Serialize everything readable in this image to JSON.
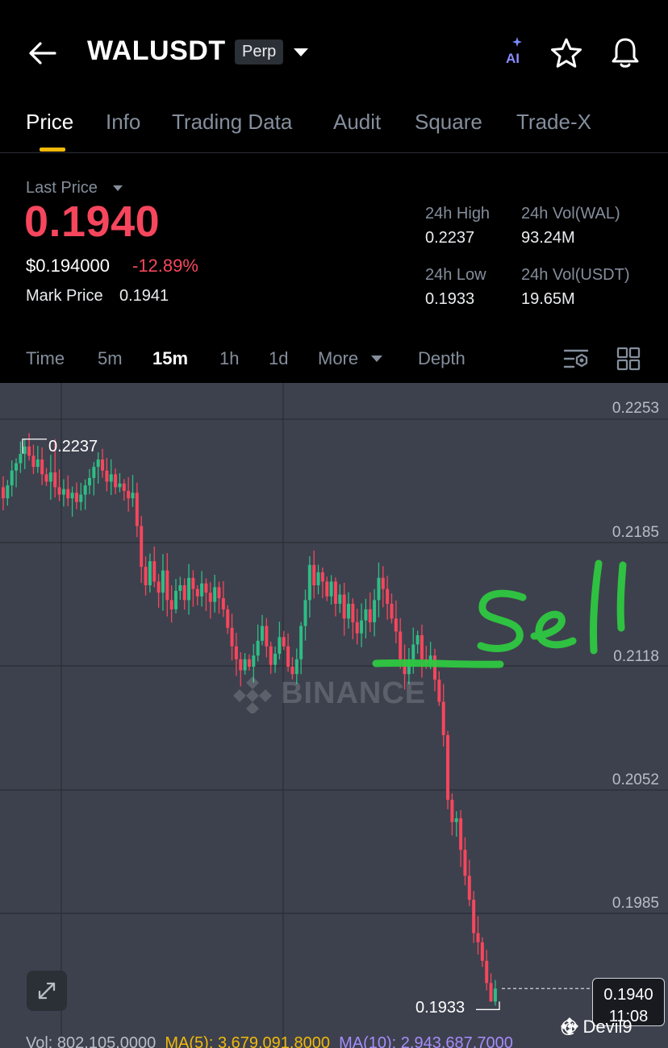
{
  "header": {
    "symbol": "WALUSDT",
    "badge": "Perp",
    "icons": [
      "back-arrow-icon",
      "chevron-down-icon",
      "ai-icon",
      "star-icon",
      "bell-icon"
    ],
    "ai_label": "AI"
  },
  "tabs": [
    {
      "label": "Price",
      "active": true
    },
    {
      "label": "Info"
    },
    {
      "label": "Trading Data"
    },
    {
      "label": "Audit"
    },
    {
      "label": "Square"
    },
    {
      "label": "Trade-X"
    }
  ],
  "price": {
    "last_price_label": "Last Price",
    "last_price": "0.1940",
    "usd_price": "$0.194000",
    "change_pct": "-12.89%",
    "mark_label": "Mark Price",
    "mark_value": "0.1941"
  },
  "stats": {
    "high_label": "24h High",
    "high": "0.2237",
    "vol_base_label": "24h Vol(WAL)",
    "vol_base": "93.24M",
    "low_label": "24h Low",
    "low": "0.1933",
    "vol_quote_label": "24h Vol(USDT)",
    "vol_quote": "19.65M"
  },
  "intervals": {
    "items": [
      "Time",
      "5m",
      "15m",
      "1h",
      "1d",
      "More",
      "Depth"
    ],
    "active": "15m"
  },
  "chart": {
    "watermark": "BINANCE",
    "y_ticks": [
      "0.2253",
      "0.2185",
      "0.2118",
      "0.2052",
      "0.1985"
    ],
    "high_marker": "0.2237",
    "low_marker": "0.1933",
    "current_price": "0.1940",
    "countdown": "11:08",
    "annotation": "Sell",
    "vol_label": "Vol: 802,105.0000",
    "ma5_label": "MA(5): 3,679,091.8000",
    "ma10_label": "MA(10): 2,943,687.7000",
    "credit": "@ Devil9",
    "colors": {
      "up": "#2ebd85",
      "down": "#f6465d",
      "bg": "#3d414d",
      "accent": "#f0b90b",
      "annotation": "#2ecc40"
    }
  },
  "chart_data": {
    "type": "candlestick",
    "interval": "15m",
    "y_ticks": [
      0.2253,
      0.2185,
      0.2118,
      0.2052,
      0.1985
    ],
    "high": 0.2237,
    "low": 0.1933,
    "last": 0.194,
    "close_series": [
      0.2205,
      0.2212,
      0.222,
      0.2224,
      0.2229,
      0.2233,
      0.2228,
      0.2222,
      0.2226,
      0.2218,
      0.2214,
      0.2219,
      0.2211,
      0.2207,
      0.221,
      0.2205,
      0.2208,
      0.2203,
      0.2207,
      0.2212,
      0.2216,
      0.2222,
      0.2226,
      0.222,
      0.2214,
      0.2218,
      0.2211,
      0.2213,
      0.2209,
      0.2205,
      0.2208,
      0.219,
      0.2168,
      0.2158,
      0.2171,
      0.216,
      0.2154,
      0.2166,
      0.215,
      0.2145,
      0.2155,
      0.2158,
      0.215,
      0.2162,
      0.2156,
      0.2152,
      0.2159,
      0.2154,
      0.2149,
      0.2157,
      0.2151,
      0.2145,
      0.2135,
      0.2125,
      0.2118,
      0.2112,
      0.2118,
      0.2114,
      0.212,
      0.2128,
      0.2136,
      0.2125,
      0.2115,
      0.2121,
      0.213,
      0.2125,
      0.2114,
      0.211,
      0.2118,
      0.2136,
      0.215,
      0.2169,
      0.2158,
      0.2165,
      0.216,
      0.2152,
      0.216,
      0.2148,
      0.2153,
      0.214,
      0.2148,
      0.2138,
      0.2132,
      0.2139,
      0.2145,
      0.2138,
      0.215,
      0.2162,
      0.2156,
      0.2148,
      0.214,
      0.2133,
      0.2118,
      0.211,
      0.2118,
      0.2126,
      0.2131,
      0.2118,
      0.2116,
      0.212,
      0.2107,
      0.2095,
      0.2077,
      0.2042,
      0.203,
      0.2032,
      0.2015,
      0.2001,
      0.1988,
      0.197,
      0.1965,
      0.1955,
      0.1943,
      0.1933,
      0.194
    ]
  }
}
